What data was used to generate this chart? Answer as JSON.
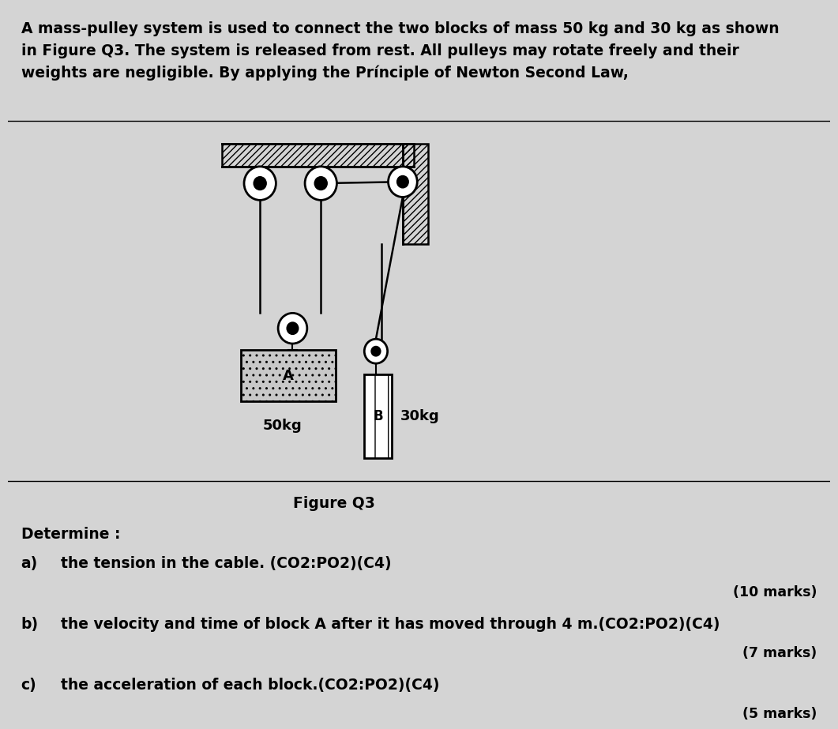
{
  "bg_color": "#d4d4d4",
  "text_color": "#000000",
  "paragraph": "A mass-pulley system is used to connect the two blocks of mass 50 kg and 30 kg as shown\nin Figure Q3. The system is released from rest. All pulleys may rotate freely and their\nweights are negligible. By applying the Prínciple of Newton Second Law,",
  "figure_caption": "Figure Q3",
  "determine_label": "Determine :",
  "items": [
    {
      "label": "a)",
      "text": "the tension in the cable. (CO2:PO2)(C4)",
      "marks": "(10 marks)"
    },
    {
      "label": "b)",
      "text": "the velocity and time of block A after it has moved through 4 m.(CO2:PO2)(C4)",
      "marks": "(7 marks)"
    },
    {
      "label": "c)",
      "text": "the acceleration of each block.(CO2:PO2)(C4)",
      "marks": "(5 marks)"
    }
  ]
}
